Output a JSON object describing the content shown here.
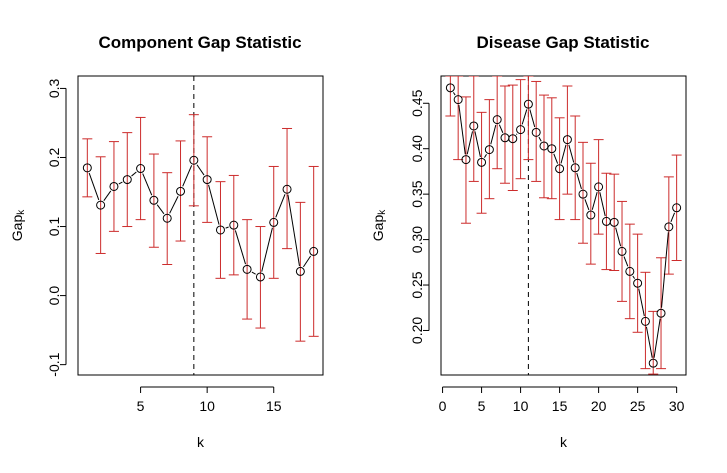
{
  "chart_data": [
    {
      "type": "scatter",
      "title": "Component Gap Statistic",
      "xlabel": "k",
      "ylabel_main": "Gap",
      "ylabel_sub": "k",
      "xlim": [
        0.3,
        18.7
      ],
      "ylim": [
        -0.115,
        0.318
      ],
      "xticks": [
        5,
        10,
        15
      ],
      "yticks": [
        -0.1,
        0.0,
        0.1,
        0.2,
        0.3
      ],
      "ytick_labels": [
        "-0.1",
        "0.0",
        "0.1",
        "0.2",
        "0.3"
      ],
      "vline": 9,
      "x": [
        1,
        2,
        3,
        4,
        5,
        6,
        7,
        8,
        9,
        10,
        11,
        12,
        13,
        14,
        15,
        16,
        17,
        18
      ],
      "y": [
        0.185,
        0.131,
        0.158,
        0.168,
        0.184,
        0.138,
        0.112,
        0.151,
        0.196,
        0.168,
        0.095,
        0.102,
        0.038,
        0.027,
        0.106,
        0.154,
        0.035,
        0.064
      ],
      "err_low": [
        0.143,
        0.061,
        0.093,
        0.1,
        0.11,
        0.07,
        0.045,
        0.079,
        0.13,
        0.106,
        0.025,
        0.03,
        -0.034,
        -0.047,
        0.025,
        0.068,
        -0.066,
        -0.059
      ],
      "err_high": [
        0.227,
        0.201,
        0.223,
        0.236,
        0.258,
        0.205,
        0.178,
        0.224,
        0.262,
        0.23,
        0.165,
        0.174,
        0.11,
        0.1,
        0.187,
        0.242,
        0.135,
        0.187
      ],
      "colors": {
        "points": "#000000",
        "errorbars": "#cc2b2b",
        "vline": "#000000"
      }
    },
    {
      "type": "scatter",
      "title": "Disease Gap Statistic",
      "xlabel": "k",
      "ylabel_main": "Gap",
      "ylabel_sub": "k",
      "xlim": [
        -0.2,
        31.2
      ],
      "ylim": [
        0.151,
        0.48
      ],
      "xticks": [
        0,
        5,
        10,
        15,
        20,
        25,
        30
      ],
      "yticks": [
        0.2,
        0.25,
        0.3,
        0.35,
        0.4,
        0.45
      ],
      "ytick_labels": [
        "0.20",
        "0.25",
        "0.30",
        "0.35",
        "0.40",
        "0.45"
      ],
      "vline": 11,
      "x": [
        1,
        2,
        3,
        4,
        5,
        6,
        7,
        8,
        9,
        10,
        11,
        12,
        13,
        14,
        15,
        16,
        17,
        18,
        19,
        20,
        21,
        22,
        23,
        24,
        25,
        26,
        27,
        28,
        29,
        30
      ],
      "y": [
        0.467,
        0.454,
        0.388,
        0.425,
        0.385,
        0.399,
        0.432,
        0.412,
        0.411,
        0.421,
        0.449,
        0.418,
        0.403,
        0.4,
        0.378,
        0.41,
        0.379,
        0.35,
        0.327,
        0.358,
        0.32,
        0.319,
        0.287,
        0.265,
        0.252,
        0.21,
        0.164,
        0.219,
        0.314,
        0.335
      ],
      "err_low": [
        0.436,
        0.388,
        0.318,
        0.364,
        0.329,
        0.345,
        0.378,
        0.362,
        0.354,
        0.367,
        0.388,
        0.364,
        0.346,
        0.345,
        0.322,
        0.35,
        0.322,
        0.296,
        0.273,
        0.306,
        0.267,
        0.266,
        0.232,
        0.213,
        0.198,
        0.158,
        0.152,
        0.158,
        0.262,
        0.277
      ],
      "err_high": [
        0.48,
        0.48,
        0.457,
        0.48,
        0.44,
        0.454,
        0.48,
        0.469,
        0.47,
        0.476,
        0.48,
        0.474,
        0.459,
        0.456,
        0.434,
        0.469,
        0.436,
        0.407,
        0.384,
        0.41,
        0.373,
        0.372,
        0.342,
        0.317,
        0.306,
        0.264,
        0.221,
        0.28,
        0.369,
        0.393
      ],
      "colors": {
        "points": "#000000",
        "errorbars": "#cc2b2b",
        "vline": "#000000"
      }
    }
  ]
}
